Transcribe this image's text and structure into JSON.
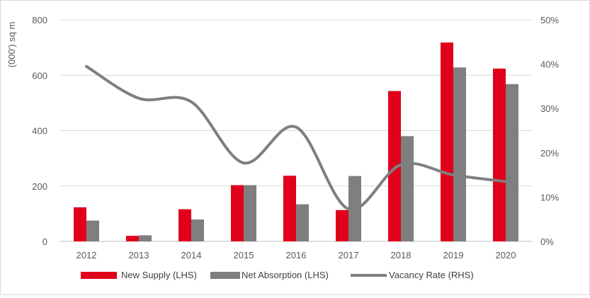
{
  "chart_data": {
    "type": "bar",
    "categories": [
      "2012",
      "2013",
      "2014",
      "2015",
      "2016",
      "2017",
      "2018",
      "2019",
      "2020"
    ],
    "series": [
      {
        "name": "New Supply (LHS)",
        "kind": "bar",
        "axis": "left",
        "color": "#e0001b",
        "values": [
          123,
          20,
          116,
          203,
          237,
          113,
          543,
          718,
          624
        ]
      },
      {
        "name": "Net Absorption (LHS)",
        "kind": "bar",
        "axis": "left",
        "color": "#7f7f7f",
        "values": [
          75,
          22,
          79,
          203,
          134,
          236,
          380,
          628,
          568
        ]
      },
      {
        "name": "Vacancy Rate (RHS)",
        "kind": "line",
        "axis": "right",
        "color": "#7f7f7f",
        "values": [
          39.5,
          32.3,
          31.5,
          17.7,
          25.8,
          7.3,
          17.3,
          15.0,
          13.5
        ]
      }
    ],
    "ylabel": "(000') sq m",
    "ylim": [
      0,
      800
    ],
    "yticks": [
      "0",
      "200",
      "400",
      "600",
      "800"
    ],
    "y2lim": [
      0,
      50
    ],
    "y2ticks": [
      "0%",
      "10%",
      "20%",
      "30%",
      "40%",
      "50%"
    ],
    "grid": true,
    "legend_position": "bottom"
  }
}
